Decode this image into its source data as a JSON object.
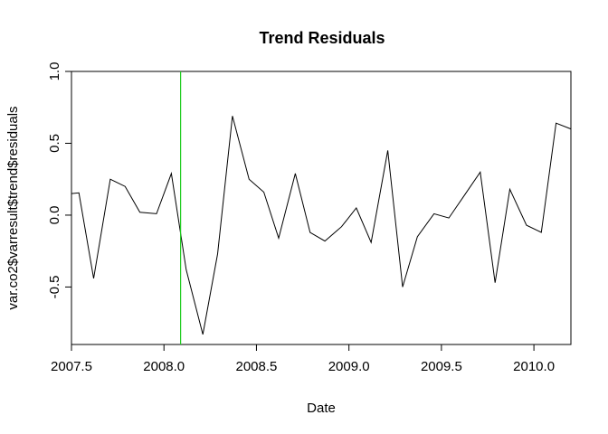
{
  "chart_data": {
    "type": "line",
    "title": "Trend Residuals",
    "xlabel": "Date",
    "ylabel": "var.co2$varresult$trend$residuals",
    "xlim": [
      2007.5,
      2010.2
    ],
    "ylim": [
      -0.9,
      1.0
    ],
    "x_ticks": [
      2007.5,
      2008.0,
      2008.5,
      2009.0,
      2009.5,
      2010.0
    ],
    "x_tick_labels": [
      "2007.5",
      "2008.0",
      "2008.5",
      "2009.0",
      "2009.5",
      "2010.0"
    ],
    "y_ticks": [
      -0.5,
      0.0,
      0.5,
      1.0
    ],
    "y_tick_labels": [
      "-0.5",
      "0.0",
      "0.5",
      "1.0"
    ],
    "grid": false,
    "series": [
      {
        "color": "#000000",
        "x": [
          2007.5,
          2007.54,
          2007.62,
          2007.71,
          2007.79,
          2007.87,
          2007.96,
          2008.04,
          2008.12,
          2008.21,
          2008.29,
          2008.37,
          2008.46,
          2008.54,
          2008.62,
          2008.71,
          2008.79,
          2008.87,
          2008.96,
          2009.04,
          2009.12,
          2009.21,
          2009.29,
          2009.37,
          2009.46,
          2009.54,
          2009.62,
          2009.71,
          2009.79,
          2009.87,
          2009.96,
          2010.04,
          2010.12,
          2010.2
        ],
        "values": [
          0.15,
          0.155,
          -0.44,
          0.25,
          0.2,
          0.02,
          0.01,
          0.29,
          -0.38,
          -0.83,
          -0.27,
          0.69,
          0.25,
          0.16,
          -0.16,
          0.29,
          -0.12,
          -0.18,
          -0.08,
          0.05,
          -0.19,
          0.45,
          -0.5,
          -0.15,
          0.01,
          -0.02,
          0.13,
          0.3,
          -0.47,
          0.18,
          -0.07,
          -0.12,
          0.64,
          0.6
        ]
      }
    ],
    "vline": {
      "x": 2008.09,
      "color": "#22cc22"
    }
  }
}
